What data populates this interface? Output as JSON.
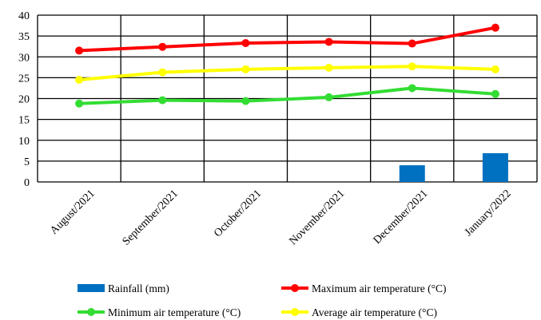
{
  "chart_data": {
    "type": "bar",
    "categories": [
      "August/2021",
      "September/2021",
      "October/2021",
      "November/2021",
      "December/2021",
      "January/2022"
    ],
    "ylim": [
      0,
      40
    ],
    "yticks": [
      0,
      5,
      10,
      15,
      20,
      25,
      30,
      35,
      40
    ],
    "grid": true,
    "legend_position": "bottom",
    "series": [
      {
        "name": "Rainfall  (mm)",
        "kind": "bar",
        "color": "#0070c0",
        "values": [
          0,
          0,
          0,
          0,
          4.0,
          6.9
        ]
      },
      {
        "name": "Maximum air temperature (°C)",
        "kind": "line",
        "color": "#ff0000",
        "values": [
          31.5,
          32.4,
          33.3,
          33.6,
          33.2,
          37.0
        ]
      },
      {
        "name": "Minimum air temperature (°C)",
        "kind": "line",
        "color": "#33dd33",
        "values": [
          18.8,
          19.6,
          19.4,
          20.3,
          22.5,
          21.1
        ]
      },
      {
        "name": "Average air temperature (°C)",
        "kind": "line",
        "color": "#ffff00",
        "values": [
          24.5,
          26.3,
          27.0,
          27.4,
          27.7,
          27.0
        ]
      }
    ]
  }
}
